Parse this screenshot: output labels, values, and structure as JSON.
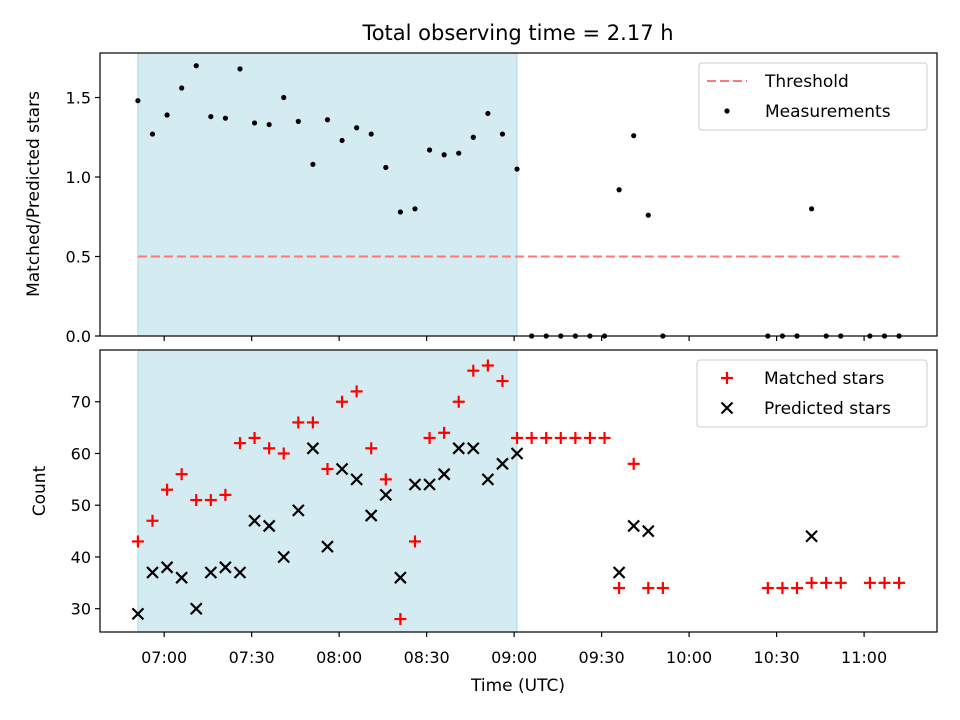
{
  "chart_data": [
    {
      "type": "scatter",
      "title": "Total observing time = 2.17 h",
      "ylabel": "Matched/Predicted stars",
      "xlabel": "",
      "ylim": [
        0,
        1.78
      ],
      "yticks": [
        "0.0",
        "0.5",
        "1.0",
        "1.5"
      ],
      "shaded_region": [
        "06:51",
        "09:01"
      ],
      "legend_placement": "top-right",
      "threshold": {
        "name": "Threshold",
        "value": 0.5,
        "x_range": [
          "06:51",
          "11:12"
        ],
        "color": "#ff7777"
      },
      "series": [
        {
          "name": "Measurements",
          "marker": "dot",
          "color": "#000000",
          "points": [
            [
              "06:51",
              1.48
            ],
            [
              "06:56",
              1.27
            ],
            [
              "07:01",
              1.39
            ],
            [
              "07:06",
              1.56
            ],
            [
              "07:11",
              1.7
            ],
            [
              "07:16",
              1.38
            ],
            [
              "07:21",
              1.37
            ],
            [
              "07:26",
              1.68
            ],
            [
              "07:31",
              1.34
            ],
            [
              "07:36",
              1.33
            ],
            [
              "07:41",
              1.5
            ],
            [
              "07:46",
              1.35
            ],
            [
              "07:51",
              1.08
            ],
            [
              "07:56",
              1.36
            ],
            [
              "08:01",
              1.23
            ],
            [
              "08:06",
              1.31
            ],
            [
              "08:11",
              1.27
            ],
            [
              "08:16",
              1.06
            ],
            [
              "08:21",
              0.78
            ],
            [
              "08:26",
              0.8
            ],
            [
              "08:31",
              1.17
            ],
            [
              "08:36",
              1.14
            ],
            [
              "08:41",
              1.15
            ],
            [
              "08:46",
              1.25
            ],
            [
              "08:51",
              1.4
            ],
            [
              "08:56",
              1.27
            ],
            [
              "09:01",
              1.05
            ],
            [
              "09:06",
              0
            ],
            [
              "09:11",
              0
            ],
            [
              "09:16",
              0
            ],
            [
              "09:21",
              0
            ],
            [
              "09:26",
              0
            ],
            [
              "09:31",
              0
            ],
            [
              "09:36",
              0.92
            ],
            [
              "09:41",
              1.26
            ],
            [
              "09:46",
              0.76
            ],
            [
              "09:51",
              0
            ],
            [
              "10:27",
              0
            ],
            [
              "10:32",
              0
            ],
            [
              "10:37",
              0
            ],
            [
              "10:42",
              0.8
            ],
            [
              "10:47",
              0
            ],
            [
              "10:52",
              0
            ],
            [
              "11:02",
              0
            ],
            [
              "11:07",
              0
            ],
            [
              "11:12",
              0
            ]
          ]
        }
      ]
    },
    {
      "type": "scatter",
      "title": "",
      "ylabel": "Count",
      "xlabel": "Time (UTC)",
      "ylim": [
        25.5,
        80
      ],
      "yticks": [
        "30",
        "40",
        "50",
        "60",
        "70"
      ],
      "xticks": [
        "07:00",
        "07:30",
        "08:00",
        "08:30",
        "09:00",
        "09:30",
        "10:00",
        "10:30",
        "11:00"
      ],
      "xlim": [
        "06:38",
        "11:25"
      ],
      "shaded_region": [
        "06:51",
        "09:01"
      ],
      "legend_placement": "top-right",
      "series": [
        {
          "name": "Matched stars",
          "marker": "plus",
          "color": "#ff0000",
          "points": [
            [
              "06:51",
              43
            ],
            [
              "06:56",
              47
            ],
            [
              "07:01",
              53
            ],
            [
              "07:06",
              56
            ],
            [
              "07:11",
              51
            ],
            [
              "07:16",
              51
            ],
            [
              "07:21",
              52
            ],
            [
              "07:26",
              62
            ],
            [
              "07:31",
              63
            ],
            [
              "07:36",
              61
            ],
            [
              "07:41",
              60
            ],
            [
              "07:46",
              66
            ],
            [
              "07:51",
              66
            ],
            [
              "07:56",
              57
            ],
            [
              "08:01",
              70
            ],
            [
              "08:06",
              72
            ],
            [
              "08:11",
              61
            ],
            [
              "08:16",
              55
            ],
            [
              "08:21",
              28
            ],
            [
              "08:26",
              43
            ],
            [
              "08:31",
              63
            ],
            [
              "08:36",
              64
            ],
            [
              "08:41",
              70
            ],
            [
              "08:46",
              76
            ],
            [
              "08:51",
              77
            ],
            [
              "08:56",
              74
            ],
            [
              "09:01",
              63
            ],
            [
              "09:06",
              63
            ],
            [
              "09:11",
              63
            ],
            [
              "09:16",
              63
            ],
            [
              "09:21",
              63
            ],
            [
              "09:26",
              63
            ],
            [
              "09:31",
              63
            ],
            [
              "09:36",
              34
            ],
            [
              "09:41",
              58
            ],
            [
              "09:46",
              34
            ],
            [
              "09:51",
              34
            ],
            [
              "10:27",
              34
            ],
            [
              "10:32",
              34
            ],
            [
              "10:37",
              34
            ],
            [
              "10:42",
              35
            ],
            [
              "10:47",
              35
            ],
            [
              "10:52",
              35
            ],
            [
              "11:02",
              35
            ],
            [
              "11:07",
              35
            ],
            [
              "11:12",
              35
            ]
          ]
        },
        {
          "name": "Predicted stars",
          "marker": "x",
          "color": "#000000",
          "points": [
            [
              "06:51",
              29
            ],
            [
              "06:56",
              37
            ],
            [
              "07:01",
              38
            ],
            [
              "07:06",
              36
            ],
            [
              "07:11",
              30
            ],
            [
              "07:16",
              37
            ],
            [
              "07:21",
              38
            ],
            [
              "07:26",
              37
            ],
            [
              "07:31",
              47
            ],
            [
              "07:36",
              46
            ],
            [
              "07:41",
              40
            ],
            [
              "07:46",
              49
            ],
            [
              "07:51",
              61
            ],
            [
              "07:56",
              42
            ],
            [
              "08:01",
              57
            ],
            [
              "08:06",
              55
            ],
            [
              "08:11",
              48
            ],
            [
              "08:16",
              52
            ],
            [
              "08:21",
              36
            ],
            [
              "08:26",
              54
            ],
            [
              "08:31",
              54
            ],
            [
              "08:36",
              56
            ],
            [
              "08:41",
              61
            ],
            [
              "08:46",
              61
            ],
            [
              "08:51",
              55
            ],
            [
              "08:56",
              58
            ],
            [
              "09:01",
              60
            ],
            [
              "09:36",
              37
            ],
            [
              "09:41",
              46
            ],
            [
              "09:46",
              45
            ],
            [
              "10:42",
              44
            ]
          ]
        }
      ]
    }
  ],
  "colors": {
    "shade": "#d4ebf1",
    "shade_edge": "#a9dbe3"
  }
}
